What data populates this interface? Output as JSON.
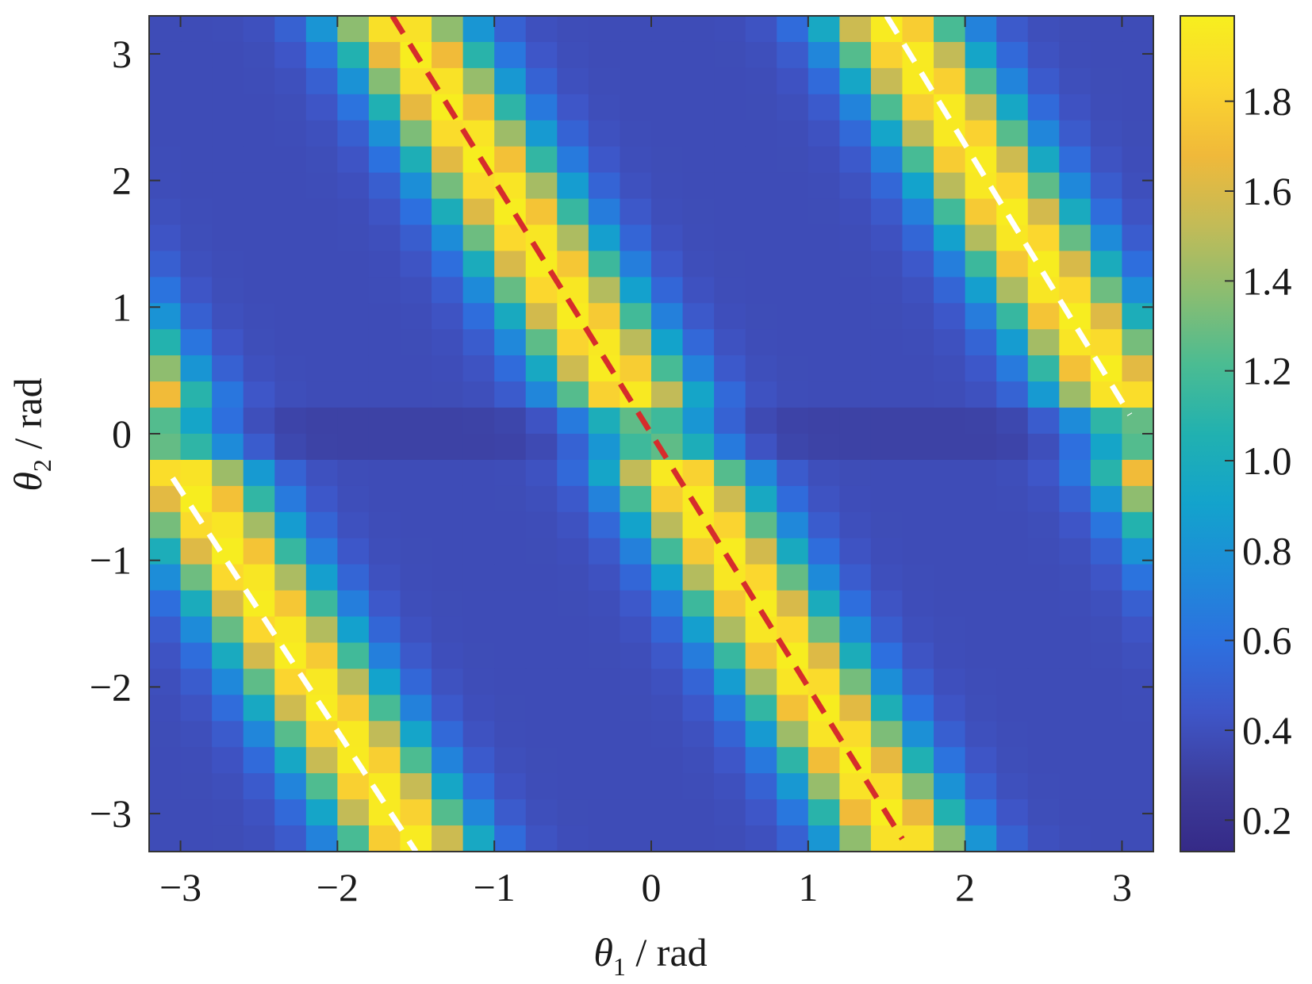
{
  "chart_data": {
    "type": "heatmap",
    "xlabel": {
      "symbol": "θ",
      "subscript": "1",
      "unit": " / rad"
    },
    "ylabel": {
      "symbol": "θ",
      "subscript": "2",
      "unit": " / rad"
    },
    "xlim": [
      -3.2,
      3.2
    ],
    "ylim": [
      -3.3,
      3.3
    ],
    "x_ticks": [
      -3,
      -2,
      -1,
      0,
      1,
      2,
      3
    ],
    "x_tick_labels": [
      "−3",
      "−2",
      "−1",
      "0",
      "1",
      "2",
      "3"
    ],
    "y_ticks": [
      -3,
      -2,
      -1,
      0,
      1,
      2,
      3
    ],
    "y_tick_labels": [
      "−3",
      "−2",
      "−1",
      "0",
      "1",
      "2",
      "3"
    ],
    "grid": false,
    "grid_size": [
      32,
      32
    ],
    "field": {
      "description": "value peaks along theta2 = -2*theta1 (wrapped to [-pi, pi]) and decays with distance from that line",
      "peak": 1.98,
      "background": 0.38,
      "band_halfwidth": 0.62,
      "zero_row_dip": 0.22
    },
    "lines": [
      {
        "name": "main",
        "color": "#d62c2c",
        "style": "dashed",
        "points": [
          [
            -1.65,
            3.3
          ],
          [
            1.6,
            -3.2
          ]
        ]
      },
      {
        "name": "wrap-upper",
        "color": "#ffffff",
        "style": "dashed",
        "points": [
          [
            1.5,
            3.3
          ],
          [
            3.05,
            0.15
          ]
        ]
      },
      {
        "name": "wrap-lower",
        "color": "#ffffff",
        "style": "dashed",
        "points": [
          [
            -3.05,
            -0.35
          ],
          [
            -1.5,
            -3.3
          ]
        ]
      }
    ],
    "colorbar": {
      "min": 0.13,
      "max": 1.99,
      "ticks": [
        0.2,
        0.4,
        0.6,
        0.8,
        1.0,
        1.2,
        1.4,
        1.6,
        1.8
      ],
      "tick_labels": [
        "0.2",
        "0.4",
        "0.6",
        "0.8",
        "1.0",
        "1.2",
        "1.4",
        "1.6",
        "1.8"
      ],
      "colormap": "parula",
      "stops": [
        "#352a87",
        "#3d3d9c",
        "#3e56c8",
        "#2d70df",
        "#1e8bd9",
        "#13a3cc",
        "#21b1b0",
        "#4bbc92",
        "#8abd71",
        "#c3bb57",
        "#f0b93a",
        "#fbd62f",
        "#f7ef1e"
      ]
    }
  }
}
